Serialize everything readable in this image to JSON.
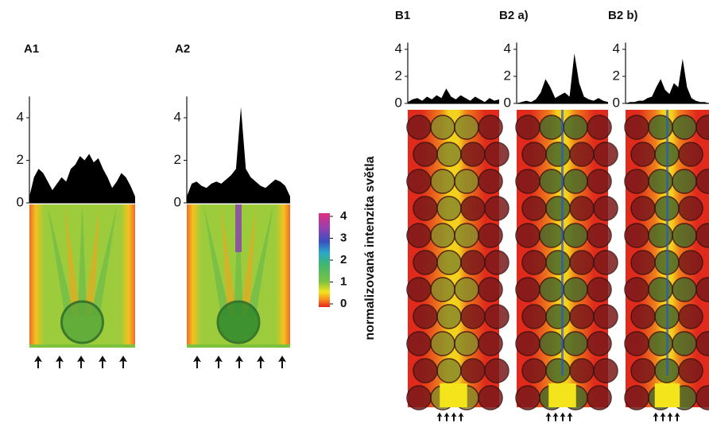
{
  "chart_data": [
    {
      "type": "area",
      "title": "A1",
      "ylim": [
        0,
        5
      ],
      "yticks": [
        0,
        2,
        4
      ],
      "color": "#000000",
      "values": [
        0.3,
        1.2,
        1.6,
        1.4,
        1.0,
        0.6,
        0.9,
        1.2,
        1.0,
        1.6,
        1.8,
        2.2,
        2.0,
        2.3,
        1.9,
        2.1,
        1.6,
        1.2,
        0.7,
        1.0,
        1.4,
        1.2,
        0.8,
        0.3
      ]
    },
    {
      "type": "area",
      "title": "A2",
      "ylim": [
        0,
        5
      ],
      "yticks": [
        0,
        2,
        4
      ],
      "color": "#000000",
      "values": [
        0.3,
        0.9,
        1.0,
        0.8,
        0.7,
        0.9,
        1.0,
        0.9,
        1.1,
        1.3,
        1.6,
        4.5,
        1.6,
        1.2,
        1.0,
        0.8,
        0.7,
        0.9,
        1.1,
        1.0,
        0.8,
        0.3
      ]
    },
    {
      "type": "area",
      "title": "B1",
      "ylim": [
        0,
        4.5
      ],
      "yticks": [
        0,
        2,
        4
      ],
      "color": "#000000",
      "values": [
        0.1,
        0.3,
        0.4,
        0.2,
        0.5,
        0.3,
        0.6,
        0.4,
        1.1,
        0.5,
        0.3,
        0.6,
        0.4,
        0.2,
        0.5,
        0.3,
        0.1,
        0.4,
        0.2,
        0.3
      ]
    },
    {
      "type": "area",
      "title": "B2 a)",
      "ylim": [
        0,
        4.5
      ],
      "yticks": [
        0,
        2,
        4
      ],
      "color": "#000000",
      "values": [
        0.0,
        0.1,
        0.2,
        0.1,
        0.3,
        0.8,
        1.8,
        1.2,
        0.4,
        0.6,
        0.8,
        0.5,
        3.7,
        1.5,
        0.5,
        0.3,
        0.2,
        0.4,
        0.2,
        0.1
      ]
    },
    {
      "type": "area",
      "title": "B2 b)",
      "ylim": [
        0,
        4.5
      ],
      "yticks": [
        0,
        2,
        4
      ],
      "color": "#000000",
      "values": [
        0.0,
        0.1,
        0.1,
        0.2,
        0.2,
        0.4,
        0.5,
        1.2,
        1.8,
        1.0,
        0.7,
        1.5,
        1.2,
        3.3,
        1.2,
        0.4,
        0.2,
        0.1,
        0.1,
        0.0
      ]
    }
  ],
  "colorbar": {
    "label": "normalizovaná intenzita světla",
    "lim": [
      0,
      4
    ],
    "ticks": [
      0,
      1,
      2,
      3,
      4
    ]
  }
}
